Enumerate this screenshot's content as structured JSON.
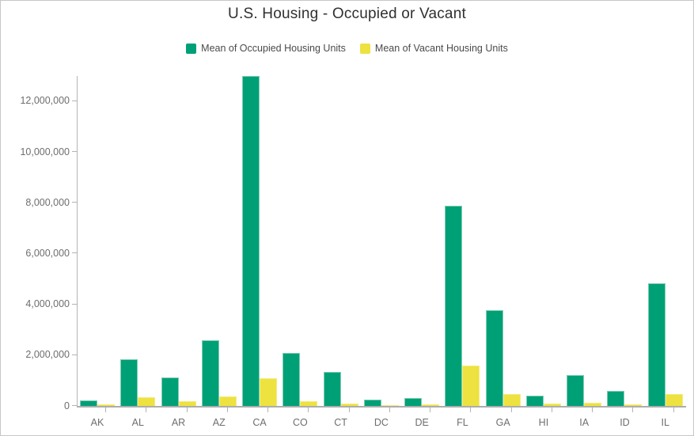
{
  "title": "U.S. Housing - Occupied or Vacant",
  "legend": [
    {
      "label": "Mean of Occupied Housing Units",
      "color": "#00a077"
    },
    {
      "label": "Mean of Vacant Housing Units",
      "color": "#ede23f"
    }
  ],
  "colors": {
    "occupied_fill": "#00a077",
    "occupied_edge": "#7fcdb0",
    "vacant_fill": "#ede23f",
    "vacant_edge": "#f3eb82",
    "axis": "#b3b3b3",
    "tick_text": "#6e6e6e",
    "title_text": "#303030"
  },
  "chart_data": {
    "type": "bar",
    "title": "U.S. Housing - Occupied or Vacant",
    "xlabel": "",
    "ylabel": "",
    "grid": false,
    "legend_position": "top",
    "categories": [
      "AK",
      "AL",
      "AR",
      "AZ",
      "CA",
      "CO",
      "CT",
      "DC",
      "DE",
      "FL",
      "GA",
      "HI",
      "IA",
      "ID",
      "IL"
    ],
    "series": [
      {
        "name": "Mean of Occupied Housing Units",
        "color": "#00a077",
        "values": [
          230000,
          1850000,
          1130000,
          2600000,
          13000000,
          2080000,
          1350000,
          250000,
          320000,
          7870000,
          3780000,
          420000,
          1220000,
          600000,
          4830000
        ]
      },
      {
        "name": "Mean of Vacant Housing Units",
        "color": "#ede23f",
        "values": [
          50000,
          350000,
          180000,
          360000,
          1080000,
          195000,
          105000,
          30000,
          60000,
          1580000,
          470000,
          90000,
          125000,
          72000,
          465000
        ]
      }
    ],
    "ylim": [
      0,
      13050000
    ],
    "yticks": [
      0,
      2000000,
      4000000,
      6000000,
      8000000,
      10000000,
      12000000
    ],
    "ytick_labels": [
      "0",
      "2,000,000",
      "4,000,000",
      "6,000,000",
      "8,000,000",
      "10,000,000",
      "12,000,000"
    ]
  }
}
